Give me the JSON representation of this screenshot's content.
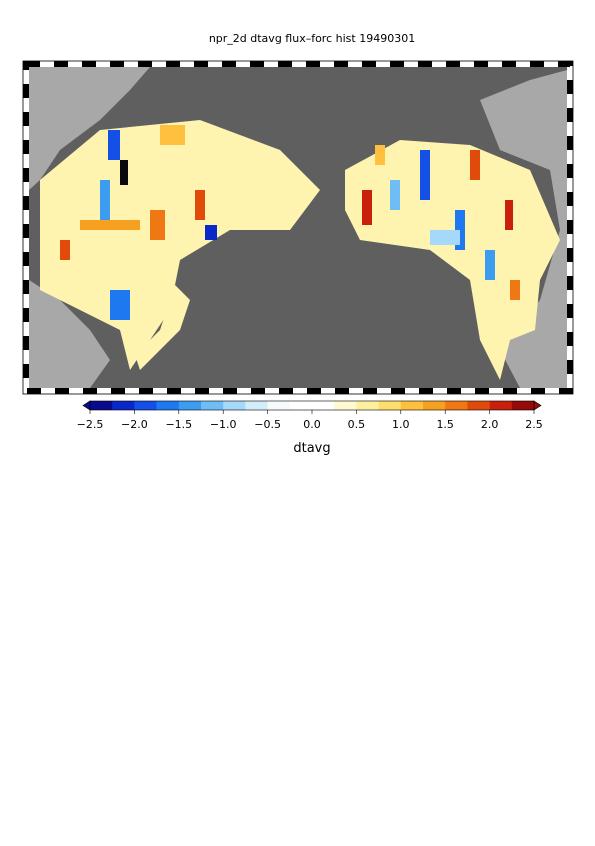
{
  "title": "npr_2d dtavg flux–forc hist 19490301",
  "colorbar": {
    "label": "dtavg",
    "lim": [
      -2.5,
      2.5
    ],
    "ticks": [
      {
        "value": -2.5,
        "label": "−2.5"
      },
      {
        "value": -2.0,
        "label": "−2.0"
      },
      {
        "value": -1.5,
        "label": "−1.5"
      },
      {
        "value": -1.0,
        "label": "−1.0"
      },
      {
        "value": -0.5,
        "label": "−0.5"
      },
      {
        "value": 0.0,
        "label": "0.0"
      },
      0.5,
      {
        "value": 1.0,
        "label": "1.0"
      },
      1.5,
      {
        "value": 2.0,
        "label": "2.0"
      },
      2.5
    ],
    "colors": [
      "#0a0a8c",
      "#0a28c8",
      "#1450e6",
      "#1e78f0",
      "#3c9cf0",
      "#6ebef5",
      "#a5d8fa",
      "#d2ecfa",
      "#f5fafa",
      "#ffffff",
      "#ffffff",
      "#fffad2",
      "#fff0a0",
      "#ffdc6e",
      "#ffc040",
      "#f5a020",
      "#f07814",
      "#e04a0a",
      "#c8200a",
      "#960a0a"
    ]
  }
}
